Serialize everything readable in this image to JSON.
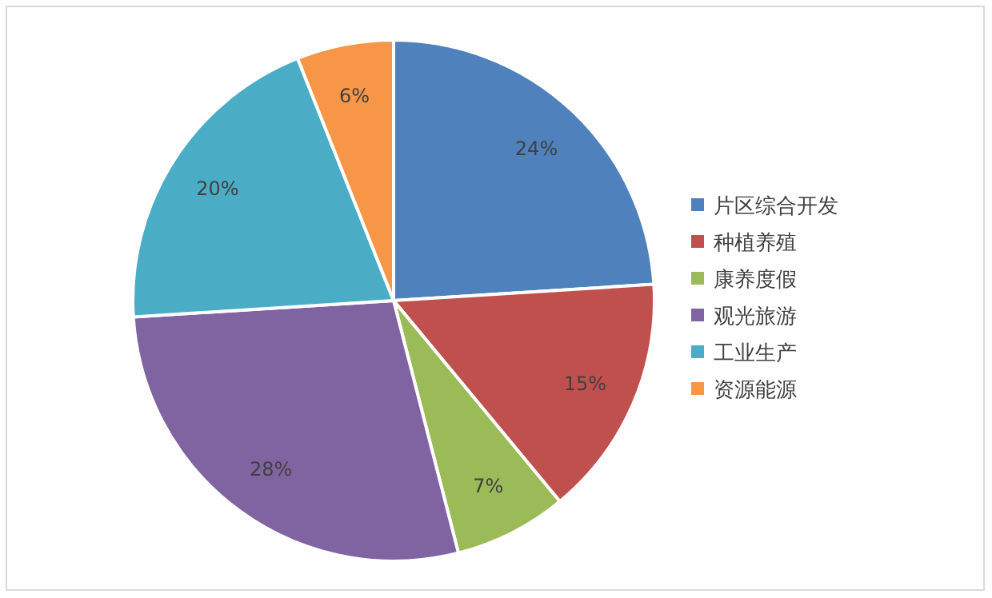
{
  "chart_data": {
    "type": "pie",
    "categories": [
      "片区综合开发",
      "种植养殖",
      "康养度假",
      "观光旅游",
      "工业生产",
      "资源能源"
    ],
    "values": [
      24,
      15,
      7,
      28,
      20,
      6
    ],
    "value_labels": [
      "24%",
      "15%",
      "7%",
      "28%",
      "20%",
      "6%"
    ],
    "colors": [
      "#4f81bd",
      "#c0504d",
      "#9bbb59",
      "#8064a2",
      "#4bacc6",
      "#f79646"
    ],
    "legend": "right"
  }
}
